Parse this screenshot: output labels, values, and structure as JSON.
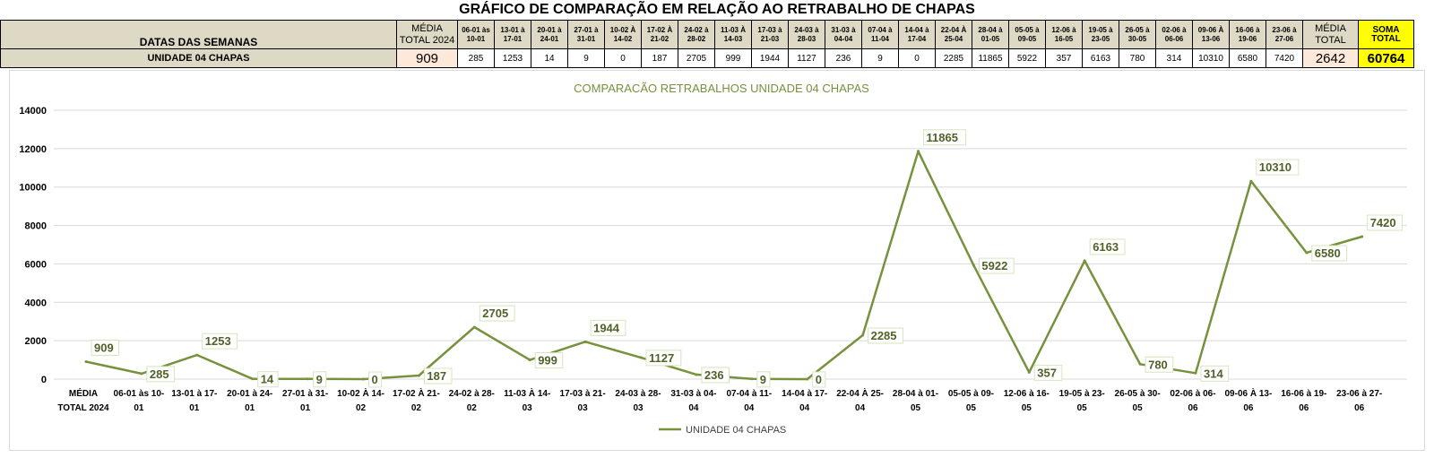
{
  "title": "GRÁFICO DE COMPARAÇÃO EM RELAÇÃO AO RETRABALHO DE CHAPAS",
  "table": {
    "row_header": "DATAS DAS SEMANAS",
    "row_label": "UNIDADE 04 CHAPAS",
    "avg_2024": {
      "header": "MÉDIA TOTAL 2024",
      "value": "909"
    },
    "weeks": [
      {
        "label": "06-01 às 10-01",
        "value": "285"
      },
      {
        "label": "13-01 à 17-01",
        "value": "1253"
      },
      {
        "label": "20-01 à 24-01",
        "value": "14"
      },
      {
        "label": "27-01 à 31-01",
        "value": "9"
      },
      {
        "label": "10-02 À 14-02",
        "value": "0"
      },
      {
        "label": "17-02 À 21-02",
        "value": "187"
      },
      {
        "label": "24-02 à 28-02",
        "value": "2705"
      },
      {
        "label": "11-03 À 14-03",
        "value": "999"
      },
      {
        "label": "17-03 à 21-03",
        "value": "1944"
      },
      {
        "label": "24-03 à 28-03",
        "value": "1127"
      },
      {
        "label": "31-03 à 04-04",
        "value": "236"
      },
      {
        "label": "07-04 à 11-04",
        "value": "9"
      },
      {
        "label": "14-04 à 17-04",
        "value": "0"
      },
      {
        "label": "22-04 À 25-04",
        "value": "2285"
      },
      {
        "label": "28-04 à 01-05",
        "value": "11865"
      },
      {
        "label": "05-05 à 09-05",
        "value": "5922"
      },
      {
        "label": "12-06 à 16-05",
        "value": "357"
      },
      {
        "label": "19-05 à 23-05",
        "value": "6163"
      },
      {
        "label": "26-05 à 30-05",
        "value": "780"
      },
      {
        "label": "02-06 à 06-06",
        "value": "314"
      },
      {
        "label": "09-06 À 13-06",
        "value": "10310"
      },
      {
        "label": "16-06 à 19-06",
        "value": "6580"
      },
      {
        "label": "23-06 à 27-06",
        "value": "7420"
      }
    ],
    "avg_total": {
      "header": "MÉDIA TOTAL",
      "value": "2642"
    },
    "sum_total": {
      "header": "SOMA TOTAL",
      "value": "60764"
    }
  },
  "chart_data": {
    "type": "line",
    "title": "COMPARACÃO RETRABALHOS UNIDADE 04 CHAPAS",
    "xlabel": "",
    "ylabel": "",
    "ylim": [
      0,
      14000
    ],
    "yticks": [
      0,
      2000,
      4000,
      6000,
      8000,
      10000,
      12000,
      14000
    ],
    "grid": true,
    "legend_position": "bottom",
    "categories": [
      [
        "MÉDIA",
        "TOTAL 2024"
      ],
      [
        "06-01 às 10-",
        "01"
      ],
      [
        "13-01 à 17-",
        "01"
      ],
      [
        "20-01 à 24-",
        "01"
      ],
      [
        "27-01 à 31-",
        "01"
      ],
      [
        "10-02 À 14-",
        "02"
      ],
      [
        "17-02 À 21-",
        "02"
      ],
      [
        "24-02 à 28-",
        "02"
      ],
      [
        "11-03 À 14-",
        "03"
      ],
      [
        "17-03 à 21-",
        "03"
      ],
      [
        "24-03 à 28-",
        "03"
      ],
      [
        "31-03 à 04-",
        "04"
      ],
      [
        "07-04 à 11-",
        "04"
      ],
      [
        "14-04 à 17-",
        "04"
      ],
      [
        "22-04 À 25-",
        "04"
      ],
      [
        "28-04 à 01-",
        "05"
      ],
      [
        "05-05 à 09-",
        "05"
      ],
      [
        "12-06 à 16-",
        "05"
      ],
      [
        "19-05 à 23-",
        "05"
      ],
      [
        "26-05 à 30-",
        "05"
      ],
      [
        "02-06 à 06-",
        "06"
      ],
      [
        "09-06 À 13-",
        "06"
      ],
      [
        "16-06 à 19-",
        "06"
      ],
      [
        "23-06 à 27-",
        "06"
      ]
    ],
    "series": [
      {
        "name": "UNIDADE 04 CHAPAS",
        "color": "#76923c",
        "values": [
          909,
          285,
          1253,
          14,
          9,
          0,
          187,
          2705,
          999,
          1944,
          1127,
          236,
          9,
          0,
          2285,
          11865,
          5922,
          357,
          6163,
          780,
          314,
          10310,
          6580,
          7420
        ]
      }
    ]
  },
  "colors": {
    "header_fill": "#ddd9c4",
    "average_fill": "#fde9d9",
    "sum_fill": "#ffff00",
    "line": "#76923c",
    "label_text": "#4f6228",
    "title_text": "#76923c"
  }
}
